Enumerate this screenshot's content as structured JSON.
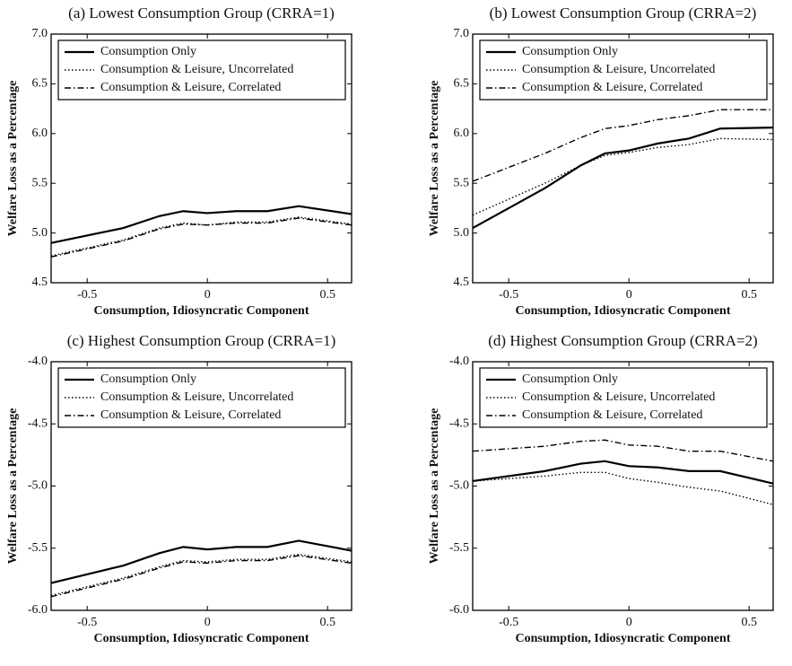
{
  "chart_data": [
    {
      "type": "line",
      "title": "(a) Lowest Consumption Group (CRRA=1)",
      "xlabel": "Consumption, Idiosyncratic Component",
      "ylabel": "Welfare Loss as a Percentage",
      "x": [
        -0.65,
        -0.35,
        -0.2,
        -0.1,
        0.0,
        0.12,
        0.25,
        0.38,
        0.6
      ],
      "xlim": [
        -0.65,
        0.6
      ],
      "xticks": [
        -0.5,
        0,
        0.5
      ],
      "ylim": [
        4.5,
        7.0
      ],
      "yticks": [
        4.5,
        {
          "value": 5.0,
          "label": "5.0"
        },
        5.5,
        {
          "value": 6.0,
          "label": "6.0"
        },
        6.5,
        {
          "value": 7.0,
          "label": "7.0"
        }
      ],
      "legend": "upper left",
      "series": [
        {
          "name": "Consumption Only",
          "color": "#000000",
          "linestyle": "solid",
          "values": [
            4.9,
            5.05,
            5.17,
            5.22,
            5.2,
            5.22,
            5.22,
            5.27,
            5.19
          ]
        },
        {
          "name": "Consumption & Leisure, Uncorrelated",
          "color": "#000000",
          "linestyle": "dotted",
          "values": [
            4.77,
            4.93,
            5.05,
            5.1,
            5.08,
            5.11,
            5.11,
            5.16,
            5.09
          ]
        },
        {
          "name": "Consumption & Leisure, Correlated",
          "color": "#000000",
          "linestyle": "dashdot",
          "values": [
            4.76,
            4.92,
            5.04,
            5.09,
            5.08,
            5.1,
            5.1,
            5.15,
            5.08
          ]
        }
      ]
    },
    {
      "type": "line",
      "title": "(b) Lowest Consumption Group (CRRA=2)",
      "xlabel": "Consumption, Idiosyncratic Component",
      "ylabel": "Welfare Loss as a Percentage",
      "x": [
        -0.65,
        -0.35,
        -0.2,
        -0.1,
        0.0,
        0.12,
        0.25,
        0.38,
        0.6
      ],
      "xlim": [
        -0.65,
        0.6
      ],
      "xticks": [
        -0.5,
        0,
        0.5
      ],
      "ylim": [
        4.5,
        7.0
      ],
      "yticks": [
        4.5,
        {
          "value": 5.0,
          "label": "5.0"
        },
        5.5,
        {
          "value": 6.0,
          "label": "6.0"
        },
        6.5,
        {
          "value": 7.0,
          "label": "7.0"
        }
      ],
      "legend": "upper left",
      "series": [
        {
          "name": "Consumption Only",
          "color": "#000000",
          "linestyle": "solid",
          "values": [
            5.05,
            5.45,
            5.68,
            5.8,
            5.83,
            5.9,
            5.95,
            6.05,
            6.06
          ]
        },
        {
          "name": "Consumption & Leisure, Uncorrelated",
          "color": "#000000",
          "linestyle": "dotted",
          "values": [
            5.18,
            5.5,
            5.68,
            5.78,
            5.81,
            5.86,
            5.89,
            5.95,
            5.94
          ]
        },
        {
          "name": "Consumption & Leisure, Correlated",
          "color": "#000000",
          "linestyle": "dashdot",
          "values": [
            5.52,
            5.8,
            5.96,
            6.05,
            6.08,
            6.14,
            6.18,
            6.24,
            6.24
          ]
        }
      ]
    },
    {
      "type": "line",
      "title": "(c) Highest Consumption Group (CRRA=1)",
      "xlabel": "Consumption, Idiosyncratic Component",
      "ylabel": "Welfare Loss as a Percentage",
      "x": [
        -0.65,
        -0.35,
        -0.2,
        -0.1,
        0.0,
        0.12,
        0.25,
        0.38,
        0.6
      ],
      "xlim": [
        -0.65,
        0.6
      ],
      "xticks": [
        -0.5,
        0,
        0.5
      ],
      "ylim": [
        -6.0,
        -4.0
      ],
      "yticks": [
        {
          "value": -6.0,
          "label": "-6.0"
        },
        -5.5,
        {
          "value": -5.0,
          "label": "-5.0"
        },
        -4.5,
        {
          "value": -4.0,
          "label": "-4.0"
        }
      ],
      "legend": "upper left",
      "series": [
        {
          "name": "Consumption Only",
          "color": "#000000",
          "linestyle": "solid",
          "values": [
            -5.78,
            -5.64,
            -5.54,
            -5.49,
            -5.51,
            -5.49,
            -5.49,
            -5.44,
            -5.52
          ]
        },
        {
          "name": "Consumption & Leisure, Uncorrelated",
          "color": "#000000",
          "linestyle": "dotted",
          "values": [
            -5.88,
            -5.74,
            -5.65,
            -5.6,
            -5.61,
            -5.59,
            -5.59,
            -5.55,
            -5.61
          ]
        },
        {
          "name": "Consumption & Leisure, Correlated",
          "color": "#000000",
          "linestyle": "dashdot",
          "values": [
            -5.89,
            -5.75,
            -5.66,
            -5.61,
            -5.62,
            -5.6,
            -5.6,
            -5.56,
            -5.62
          ]
        }
      ]
    },
    {
      "type": "line",
      "title": "(d) Highest Consumption Group (CRRA=2)",
      "xlabel": "Consumption, Idiosyncratic Component",
      "ylabel": "Welfare Loss as a Percentage",
      "x": [
        -0.65,
        -0.35,
        -0.2,
        -0.1,
        0.0,
        0.12,
        0.25,
        0.38,
        0.6
      ],
      "xlim": [
        -0.65,
        0.6
      ],
      "xticks": [
        -0.5,
        0,
        0.5
      ],
      "ylim": [
        -6.0,
        -4.0
      ],
      "yticks": [
        {
          "value": -6.0,
          "label": "-6.0"
        },
        -5.5,
        {
          "value": -5.0,
          "label": "-5.0"
        },
        -4.5,
        {
          "value": -4.0,
          "label": "-4.0"
        }
      ],
      "legend": "upper left",
      "series": [
        {
          "name": "Consumption Only",
          "color": "#000000",
          "linestyle": "solid",
          "values": [
            -4.96,
            -4.88,
            -4.82,
            -4.8,
            -4.84,
            -4.85,
            -4.88,
            -4.88,
            -4.98
          ]
        },
        {
          "name": "Consumption & Leisure, Uncorrelated",
          "color": "#000000",
          "linestyle": "dotted",
          "values": [
            -4.96,
            -4.92,
            -4.89,
            -4.89,
            -4.94,
            -4.97,
            -5.01,
            -5.04,
            -5.15
          ]
        },
        {
          "name": "Consumption & Leisure, Correlated",
          "color": "#000000",
          "linestyle": "dashdot",
          "values": [
            -4.72,
            -4.68,
            -4.64,
            -4.63,
            -4.67,
            -4.68,
            -4.72,
            -4.72,
            -4.8
          ]
        }
      ]
    }
  ]
}
